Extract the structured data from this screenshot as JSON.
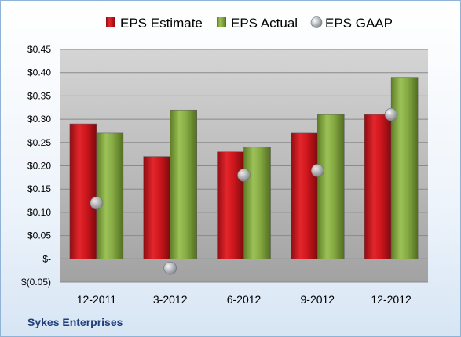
{
  "company_label": "Sykes Enterprises",
  "chart_data": {
    "type": "bar",
    "categories": [
      "12-2011",
      "3-2012",
      "6-2012",
      "9-2012",
      "12-2012"
    ],
    "series": [
      {
        "name": "EPS Estimate",
        "kind": "bar",
        "color": "#d42027",
        "values": [
          0.29,
          0.22,
          0.23,
          0.27,
          0.31
        ]
      },
      {
        "name": "EPS Actual",
        "kind": "bar",
        "color": "#8cb048",
        "values": [
          0.27,
          0.32,
          0.24,
          0.31,
          0.39
        ]
      },
      {
        "name": "EPS GAAP",
        "kind": "marker",
        "color": "#a9aeb5",
        "values": [
          0.12,
          -0.02,
          0.18,
          0.19,
          0.31
        ]
      }
    ],
    "y_ticks": [
      {
        "value": 0.45,
        "label": "$0.45"
      },
      {
        "value": 0.4,
        "label": "$0.40"
      },
      {
        "value": 0.35,
        "label": "$0.35"
      },
      {
        "value": 0.3,
        "label": "$0.30"
      },
      {
        "value": 0.25,
        "label": "$0.25"
      },
      {
        "value": 0.2,
        "label": "$0.20"
      },
      {
        "value": 0.15,
        "label": "$0.15"
      },
      {
        "value": 0.1,
        "label": "$0.10"
      },
      {
        "value": 0.05,
        "label": "$0.05"
      },
      {
        "value": 0.0,
        "label": "$-"
      },
      {
        "value": -0.05,
        "label": "$(0.05)"
      }
    ],
    "ylim": [
      -0.05,
      0.45
    ],
    "grid": true,
    "legend_position": "top"
  }
}
